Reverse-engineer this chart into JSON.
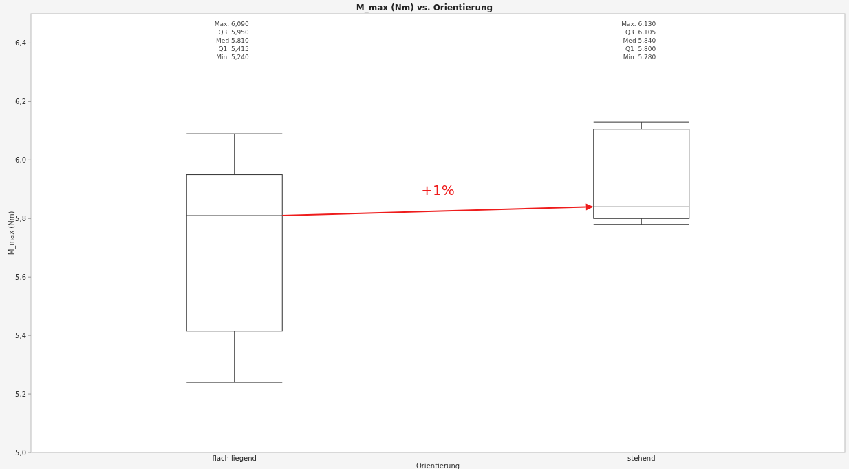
{
  "chart_data": {
    "type": "box",
    "title": "M_max (Nm) vs. Orientierung",
    "xlabel": "Orientierung",
    "ylabel": "M_max (Nm)",
    "categories": [
      "flach liegend",
      "stehend"
    ],
    "boxes": [
      {
        "low": 5.24,
        "q1": 5.415,
        "median": 5.81,
        "q3": 5.95,
        "high": 6.09
      },
      {
        "low": 5.78,
        "q1": 5.8,
        "median": 5.84,
        "q3": 6.105,
        "high": 6.13
      }
    ],
    "ylim": [
      5,
      6.5
    ],
    "yticks": [
      {
        "value": 5,
        "label": "5,0"
      },
      {
        "value": 5.2,
        "label": "5,2"
      },
      {
        "value": 5.4,
        "label": "5,4"
      },
      {
        "value": 5.6,
        "label": "5,6"
      },
      {
        "value": 5.8,
        "label": "5,8"
      },
      {
        "value": 6,
        "label": "6,0"
      },
      {
        "value": 6.2,
        "label": "6,2"
      },
      {
        "value": 6.4,
        "label": "6,4"
      }
    ],
    "annotations": [
      "Max. 6,090",
      "Q3  5,950",
      "Med 5,810",
      "Q1  5,415",
      "Min. 5,240",
      "Max. 6,130",
      "Q3  6,105",
      "Med 5,840",
      "Q1  5,800",
      "Min. 5,780",
      "+1%"
    ],
    "grid": false
  }
}
